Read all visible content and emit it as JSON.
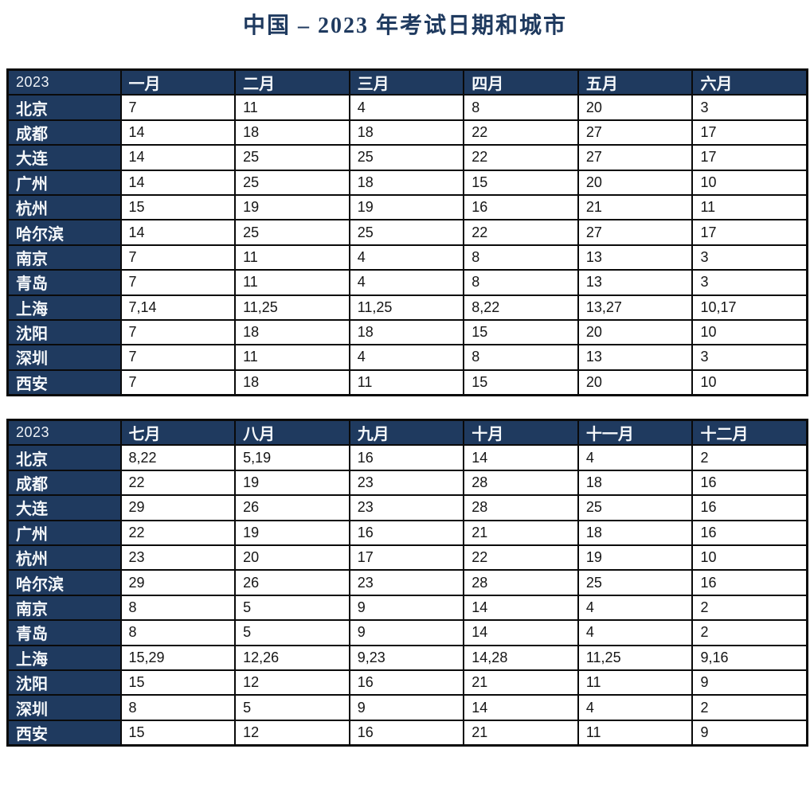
{
  "title": "中国 – 2023 年考试日期和城市",
  "colors": {
    "header_bg": "#1f3a5f",
    "header_text": "#f5f8fb",
    "border": "#0a0a0a",
    "title_text": "#1f3a5f"
  },
  "tables": [
    {
      "year_label": "2023",
      "months": [
        "一月",
        "二月",
        "三月",
        "四月",
        "五月",
        "六月"
      ],
      "rows": [
        {
          "city": "北京",
          "values": [
            "7",
            "11",
            "4",
            "8",
            "20",
            "3"
          ]
        },
        {
          "city": "成都",
          "values": [
            "14",
            "18",
            "18",
            "22",
            "27",
            "17"
          ]
        },
        {
          "city": "大连",
          "values": [
            "14",
            "25",
            "25",
            "22",
            "27",
            "17"
          ]
        },
        {
          "city": "广州",
          "values": [
            "14",
            "25",
            "18",
            "15",
            "20",
            "10"
          ]
        },
        {
          "city": "杭州",
          "values": [
            "15",
            "19",
            "19",
            "16",
            "21",
            "11"
          ]
        },
        {
          "city": "哈尔滨",
          "values": [
            "14",
            "25",
            "25",
            "22",
            "27",
            "17"
          ]
        },
        {
          "city": "南京",
          "values": [
            "7",
            "11",
            "4",
            "8",
            "13",
            "3"
          ]
        },
        {
          "city": "青岛",
          "values": [
            "7",
            "11",
            "4",
            "8",
            "13",
            "3"
          ]
        },
        {
          "city": "上海",
          "values": [
            "7,14",
            "11,25",
            "11,25",
            "8,22",
            "13,27",
            "10,17"
          ]
        },
        {
          "city": "沈阳",
          "values": [
            "7",
            "18",
            "18",
            "15",
            "20",
            "10"
          ]
        },
        {
          "city": "深圳",
          "values": [
            "7",
            "11",
            "4",
            "8",
            "13",
            "3"
          ]
        },
        {
          "city": "西安",
          "values": [
            "7",
            "18",
            "11",
            "15",
            "20",
            "10"
          ]
        }
      ]
    },
    {
      "year_label": "2023",
      "months": [
        "七月",
        "八月",
        "九月",
        "十月",
        "十一月",
        "十二月"
      ],
      "rows": [
        {
          "city": "北京",
          "values": [
            "8,22",
            "5,19",
            "16",
            "14",
            "4",
            "2"
          ]
        },
        {
          "city": "成都",
          "values": [
            "22",
            "19",
            "23",
            "28",
            "18",
            "16"
          ]
        },
        {
          "city": "大连",
          "values": [
            "29",
            "26",
            "23",
            "28",
            "25",
            "16"
          ]
        },
        {
          "city": "广州",
          "values": [
            "22",
            "19",
            "16",
            "21",
            "18",
            "16"
          ]
        },
        {
          "city": "杭州",
          "values": [
            "23",
            "20",
            "17",
            "22",
            "19",
            "10"
          ]
        },
        {
          "city": "哈尔滨",
          "values": [
            "29",
            "26",
            "23",
            "28",
            "25",
            "16"
          ]
        },
        {
          "city": "南京",
          "values": [
            "8",
            "5",
            "9",
            "14",
            "4",
            "2"
          ]
        },
        {
          "city": "青岛",
          "values": [
            "8",
            "5",
            "9",
            "14",
            "4",
            "2"
          ]
        },
        {
          "city": "上海",
          "values": [
            "15,29",
            "12,26",
            "9,23",
            "14,28",
            "11,25",
            "9,16"
          ]
        },
        {
          "city": "沈阳",
          "values": [
            "15",
            "12",
            "16",
            "21",
            "11",
            "9"
          ]
        },
        {
          "city": "深圳",
          "values": [
            "8",
            "5",
            "9",
            "14",
            "4",
            "2"
          ]
        },
        {
          "city": "西安",
          "values": [
            "15",
            "12",
            "16",
            "21",
            "11",
            "9"
          ]
        }
      ]
    }
  ]
}
